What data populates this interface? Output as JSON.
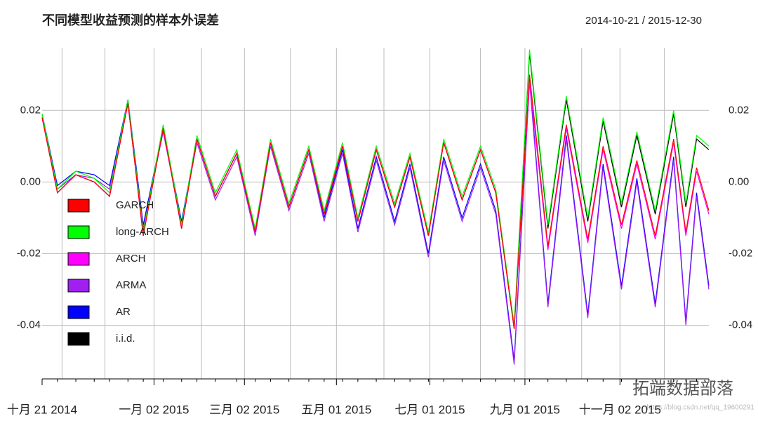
{
  "chart_data": {
    "type": "line",
    "title": "不同模型收益预测的样本外误差",
    "subtitle": "2014-10-21 / 2015-12-30",
    "watermark": "拓端数据部落",
    "source_note": "https://blog.csdn.net/qq_19600291",
    "x": [
      "2014-10-21",
      "2014-10-31",
      "2014-11-12",
      "2014-11-24",
      "2014-12-04",
      "2014-12-16",
      "2014-12-26",
      "2015-01-08",
      "2015-01-20",
      "2015-01-30",
      "2015-02-11",
      "2015-02-25",
      "2015-03-09",
      "2015-03-19",
      "2015-03-31",
      "2015-04-13",
      "2015-04-23",
      "2015-05-05",
      "2015-05-15",
      "2015-05-27",
      "2015-06-08",
      "2015-06-18",
      "2015-06-30",
      "2015-07-10",
      "2015-07-22",
      "2015-08-03",
      "2015-08-13",
      "2015-08-25",
      "2015-09-04",
      "2015-09-16",
      "2015-09-28",
      "2015-10-12",
      "2015-10-22",
      "2015-11-03",
      "2015-11-13",
      "2015-11-25",
      "2015-12-07",
      "2015-12-15",
      "2015-12-22",
      "2015-12-30"
    ],
    "series": [
      {
        "name": "GARCH",
        "color": "#ff0000",
        "values": [
          0.018,
          -0.003,
          0.002,
          0.0,
          -0.004,
          0.022,
          -0.015,
          0.015,
          -0.013,
          0.012,
          -0.004,
          0.008,
          -0.014,
          0.011,
          -0.007,
          0.009,
          -0.009,
          0.01,
          -0.011,
          0.009,
          -0.007,
          0.007,
          -0.015,
          0.011,
          -0.005,
          0.009,
          -0.003,
          -0.041,
          0.03,
          -0.018,
          0.016,
          -0.016,
          0.01,
          -0.012,
          0.006,
          -0.015,
          0.012,
          -0.014,
          0.004,
          -0.008
        ]
      },
      {
        "name": "long-ARCH",
        "color": "#00ff00",
        "values": [
          0.019,
          -0.002,
          0.003,
          0.001,
          -0.003,
          0.023,
          -0.014,
          0.016,
          -0.012,
          0.013,
          -0.003,
          0.009,
          -0.013,
          0.012,
          -0.006,
          0.01,
          -0.008,
          0.011,
          -0.01,
          0.01,
          -0.006,
          0.008,
          -0.014,
          0.012,
          -0.004,
          0.01,
          -0.002,
          -0.04,
          0.037,
          -0.012,
          0.024,
          -0.01,
          0.018,
          -0.006,
          0.014,
          -0.008,
          0.02,
          -0.006,
          0.013,
          0.01
        ]
      },
      {
        "name": "ARCH",
        "color": "#ff00ff",
        "values": [
          0.018,
          -0.003,
          0.002,
          0.0,
          -0.004,
          0.022,
          -0.015,
          0.015,
          -0.013,
          0.012,
          -0.004,
          0.008,
          -0.014,
          0.011,
          -0.007,
          0.009,
          -0.009,
          0.01,
          -0.011,
          0.009,
          -0.007,
          0.007,
          -0.015,
          0.011,
          -0.005,
          0.009,
          -0.003,
          -0.041,
          0.028,
          -0.019,
          0.015,
          -0.017,
          0.009,
          -0.013,
          0.005,
          -0.016,
          0.011,
          -0.015,
          0.003,
          -0.009
        ]
      },
      {
        "name": "ARMA",
        "color": "#a020f0",
        "values": [
          0.018,
          -0.002,
          0.002,
          0.001,
          -0.002,
          0.022,
          -0.013,
          0.014,
          -0.012,
          0.011,
          -0.005,
          0.007,
          -0.015,
          0.01,
          -0.008,
          0.008,
          -0.011,
          0.008,
          -0.014,
          0.006,
          -0.012,
          0.004,
          -0.021,
          0.006,
          -0.011,
          0.004,
          -0.009,
          -0.051,
          0.028,
          -0.035,
          0.012,
          -0.038,
          0.004,
          -0.03,
          0.0,
          -0.035,
          0.006,
          -0.04,
          -0.004,
          -0.03
        ]
      },
      {
        "name": "AR",
        "color": "#0000ff",
        "values": [
          0.019,
          -0.001,
          0.003,
          0.002,
          -0.001,
          0.023,
          -0.012,
          0.015,
          -0.011,
          0.012,
          -0.004,
          0.008,
          -0.014,
          0.011,
          -0.007,
          0.009,
          -0.01,
          0.009,
          -0.013,
          0.007,
          -0.011,
          0.005,
          -0.02,
          0.007,
          -0.01,
          0.005,
          -0.008,
          -0.05,
          0.029,
          -0.034,
          0.013,
          -0.037,
          0.005,
          -0.029,
          0.001,
          -0.034,
          0.007,
          -0.039,
          -0.003,
          -0.029
        ]
      },
      {
        "name": "i.i.d.",
        "color": "#000000",
        "values": [
          0.018,
          -0.003,
          0.002,
          0.0,
          -0.004,
          0.022,
          -0.015,
          0.015,
          -0.013,
          0.012,
          -0.004,
          0.008,
          -0.014,
          0.011,
          -0.007,
          0.009,
          -0.009,
          0.01,
          -0.011,
          0.009,
          -0.007,
          0.007,
          -0.015,
          0.011,
          -0.005,
          0.009,
          -0.003,
          -0.041,
          0.036,
          -0.013,
          0.023,
          -0.011,
          0.017,
          -0.007,
          0.013,
          -0.009,
          0.019,
          -0.007,
          0.012,
          0.009
        ]
      }
    ],
    "xlim": [
      "2014-10-21",
      "2015-12-30"
    ],
    "xticks": [
      {
        "value": "2014-10-21",
        "label": "十月 21 2014"
      },
      {
        "value": "2015-01-02",
        "label": "一月 02 2015"
      },
      {
        "value": "2015-03-02",
        "label": "三月 02 2015"
      },
      {
        "value": "2015-05-01",
        "label": "五月 01 2015"
      },
      {
        "value": "2015-07-01",
        "label": "七月 01 2015"
      },
      {
        "value": "2015-09-01",
        "label": "九月 01 2015"
      },
      {
        "value": "2015-11-02",
        "label": "十一月 02 2015"
      }
    ],
    "xgrid": [
      "2014-11-03",
      "2014-12-01",
      "2015-01-02",
      "2015-02-02",
      "2015-03-02",
      "2015-04-01",
      "2015-05-01",
      "2015-06-01",
      "2015-07-01",
      "2015-08-03",
      "2015-09-01",
      "2015-10-08",
      "2015-11-02",
      "2015-12-01"
    ],
    "ylim": [
      -0.055,
      0.0375
    ],
    "yticks": [
      {
        "value": 0.02,
        "label": "0.02"
      },
      {
        "value": 0,
        "label": "0.00"
      },
      {
        "value": -0.02,
        "label": "-0.02"
      },
      {
        "value": -0.04,
        "label": "-0.04"
      }
    ],
    "grid": true,
    "legend_position": "left"
  }
}
